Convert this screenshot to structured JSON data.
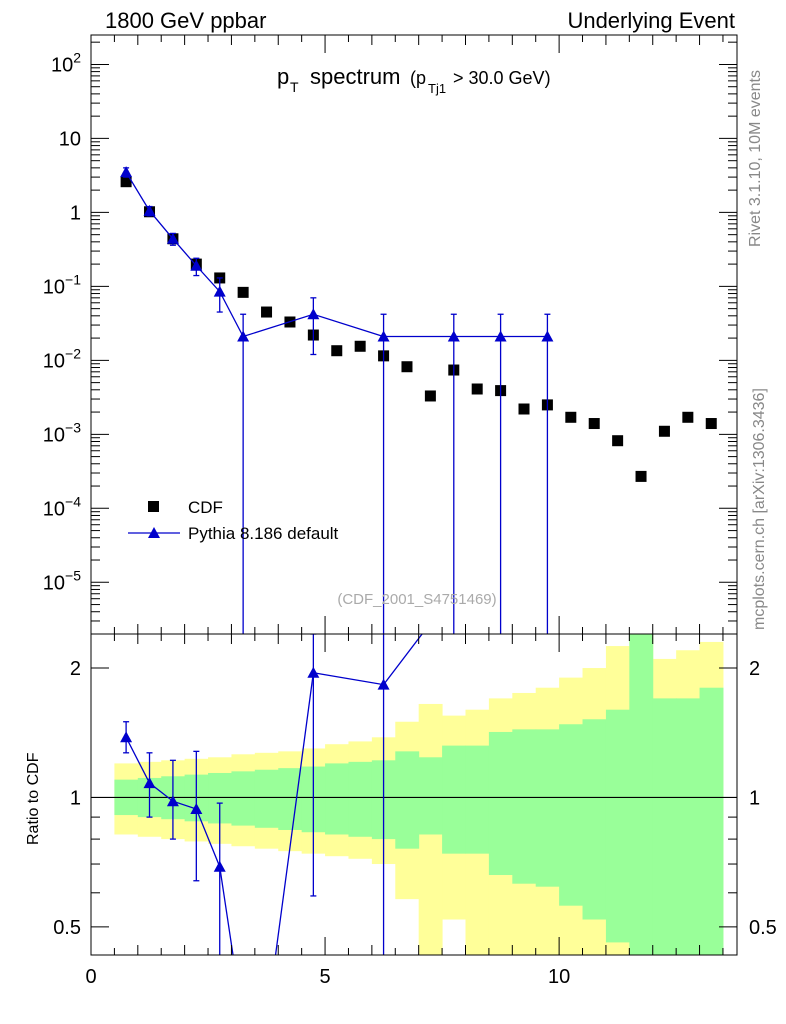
{
  "header": {
    "left": "1800 GeV ppbar",
    "right": "Underlying Event"
  },
  "side_labels": {
    "rivet": "Rivet 3.1.10,  10M events",
    "mcplots": "mcplots.cern.ch [arXiv:1306.3436]"
  },
  "chart_data": [
    {
      "type": "scatter",
      "panel": "main",
      "title_main": "p",
      "title_sub": "T",
      "title_word": "spectrum",
      "title_paren_open": "(p",
      "title_paren_sub": "Tj1",
      "title_cond": "> 30.0 GeV)",
      "watermark": "(CDF_2001_S4751469)",
      "yscale": "log",
      "xlim": [
        0,
        13.8
      ],
      "ylim": [
        2e-06,
        250
      ],
      "ticks": [
        {
          "value": 100,
          "mant": "10",
          "exp": "2"
        },
        {
          "value": 10,
          "mant": "10",
          "exp": ""
        },
        {
          "value": 1,
          "mant": "1",
          "exp": ""
        },
        {
          "value": 0.1,
          "mant": "10",
          "exp": "−1"
        },
        {
          "value": 0.01,
          "mant": "10",
          "exp": "−2"
        },
        {
          "value": 0.001,
          "mant": "10",
          "exp": "−3"
        },
        {
          "value": 0.0001,
          "mant": "10",
          "exp": "−4"
        },
        {
          "value": 1e-05,
          "mant": "10",
          "exp": "−5"
        }
      ],
      "legend": [
        "CDF",
        "Pythia 8.186 default"
      ],
      "series": [
        {
          "name": "CDF",
          "marker": "square",
          "color": "#000000",
          "x": [
            0.75,
            1.25,
            1.75,
            2.25,
            2.75,
            3.25,
            3.75,
            4.25,
            4.75,
            5.25,
            5.75,
            6.25,
            6.75,
            7.25,
            7.75,
            8.25,
            8.75,
            9.25,
            9.75,
            10.25,
            10.75,
            11.25,
            11.75,
            12.25,
            12.75,
            13.25
          ],
          "y": [
            2.6,
            1.02,
            0.44,
            0.2,
            0.13,
            0.083,
            0.045,
            0.033,
            0.022,
            0.0135,
            0.0155,
            0.0115,
            0.0082,
            0.0033,
            0.0074,
            0.0041,
            0.0039,
            0.0022,
            0.0025,
            0.0017,
            0.0014,
            0.00082,
            0.00027,
            0.0011,
            0.0017,
            0.0014
          ]
        },
        {
          "name": "Pythia 8.186 default",
          "marker": "triangle",
          "color": "#0000cc",
          "x": [
            0.75,
            1.25,
            1.75,
            2.25,
            2.75,
            3.25,
            4.75,
            6.25,
            7.75,
            8.75,
            9.75
          ],
          "y": [
            3.5,
            1.05,
            0.44,
            0.19,
            0.085,
            0.021,
            0.042,
            0.021,
            0.021,
            0.021,
            0.021
          ],
          "err_up": [
            4.0,
            1.2,
            0.52,
            0.24,
            0.13,
            0.042,
            0.07,
            0.042,
            0.042,
            0.042,
            0.042
          ],
          "err_down": [
            3.0,
            0.9,
            0.36,
            0.14,
            0.045,
            0.0,
            0.012,
            0.0,
            0.0,
            0.0,
            0.0
          ]
        }
      ]
    },
    {
      "type": "line",
      "panel": "ratio",
      "ylabel": "Ratio to CDF",
      "yscale": "log",
      "xlim": [
        0,
        13.8
      ],
      "ylim": [
        0.43,
        2.4
      ],
      "xticks": [
        0,
        5,
        10
      ],
      "yticks": [
        0.5,
        1,
        2
      ],
      "bins": [
        0.5,
        1.0,
        1.5,
        2.0,
        2.5,
        3.0,
        3.5,
        4.0,
        4.5,
        5.0,
        5.5,
        6.0,
        6.5,
        7.0,
        7.5,
        8.0,
        8.5,
        9.0,
        9.5,
        10.0,
        10.5,
        11.0,
        11.5,
        12.0,
        12.5,
        13.0,
        13.5
      ],
      "band_green": {
        "color": "#99ff99",
        "lo": [
          0.91,
          0.9,
          0.89,
          0.88,
          0.87,
          0.86,
          0.85,
          0.84,
          0.83,
          0.82,
          0.81,
          0.8,
          0.76,
          0.82,
          0.74,
          0.74,
          0.66,
          0.63,
          0.62,
          0.56,
          0.52,
          0.46,
          0.3,
          0.3,
          0.3,
          0.3
        ],
        "hi": [
          1.1,
          1.11,
          1.12,
          1.13,
          1.14,
          1.15,
          1.16,
          1.17,
          1.18,
          1.2,
          1.21,
          1.22,
          1.28,
          1.24,
          1.32,
          1.32,
          1.42,
          1.44,
          1.44,
          1.48,
          1.52,
          1.6,
          2.6,
          1.7,
          1.7,
          1.8
        ]
      },
      "band_yellow": {
        "color": "#ffff99",
        "lo": [
          0.82,
          0.81,
          0.8,
          0.79,
          0.78,
          0.77,
          0.76,
          0.75,
          0.74,
          0.73,
          0.72,
          0.7,
          0.58,
          0.3,
          0.52,
          0.3,
          0.3,
          0.3,
          0.3,
          0.3,
          0.3,
          0.3,
          0.3,
          0.3,
          0.3,
          0.3
        ],
        "hi": [
          1.2,
          1.21,
          1.22,
          1.23,
          1.24,
          1.26,
          1.27,
          1.28,
          1.3,
          1.33,
          1.35,
          1.38,
          1.5,
          1.65,
          1.55,
          1.6,
          1.7,
          1.75,
          1.8,
          1.9,
          2.0,
          2.25,
          3.0,
          2.1,
          2.2,
          2.3
        ]
      },
      "series": [
        {
          "name": "Pythia 8.186 default",
          "color": "#0000cc",
          "x": [
            0.75,
            1.25,
            1.75,
            2.25,
            2.75,
            3.25,
            3.75,
            4.75,
            6.25,
            7.75
          ],
          "y": [
            1.38,
            1.08,
            0.98,
            0.94,
            0.69,
            0.3,
            0.3,
            1.95,
            1.83,
            3.0
          ],
          "err_up": [
            1.5,
            1.27,
            1.22,
            1.28,
            0.97,
            null,
            null,
            2.4,
            3.0,
            null
          ],
          "err_down": [
            1.27,
            0.9,
            0.8,
            0.64,
            0.3,
            null,
            null,
            0.59,
            0.3,
            null
          ],
          "markers": [
            true,
            true,
            true,
            true,
            true,
            false,
            false,
            true,
            true,
            false
          ]
        }
      ]
    }
  ]
}
